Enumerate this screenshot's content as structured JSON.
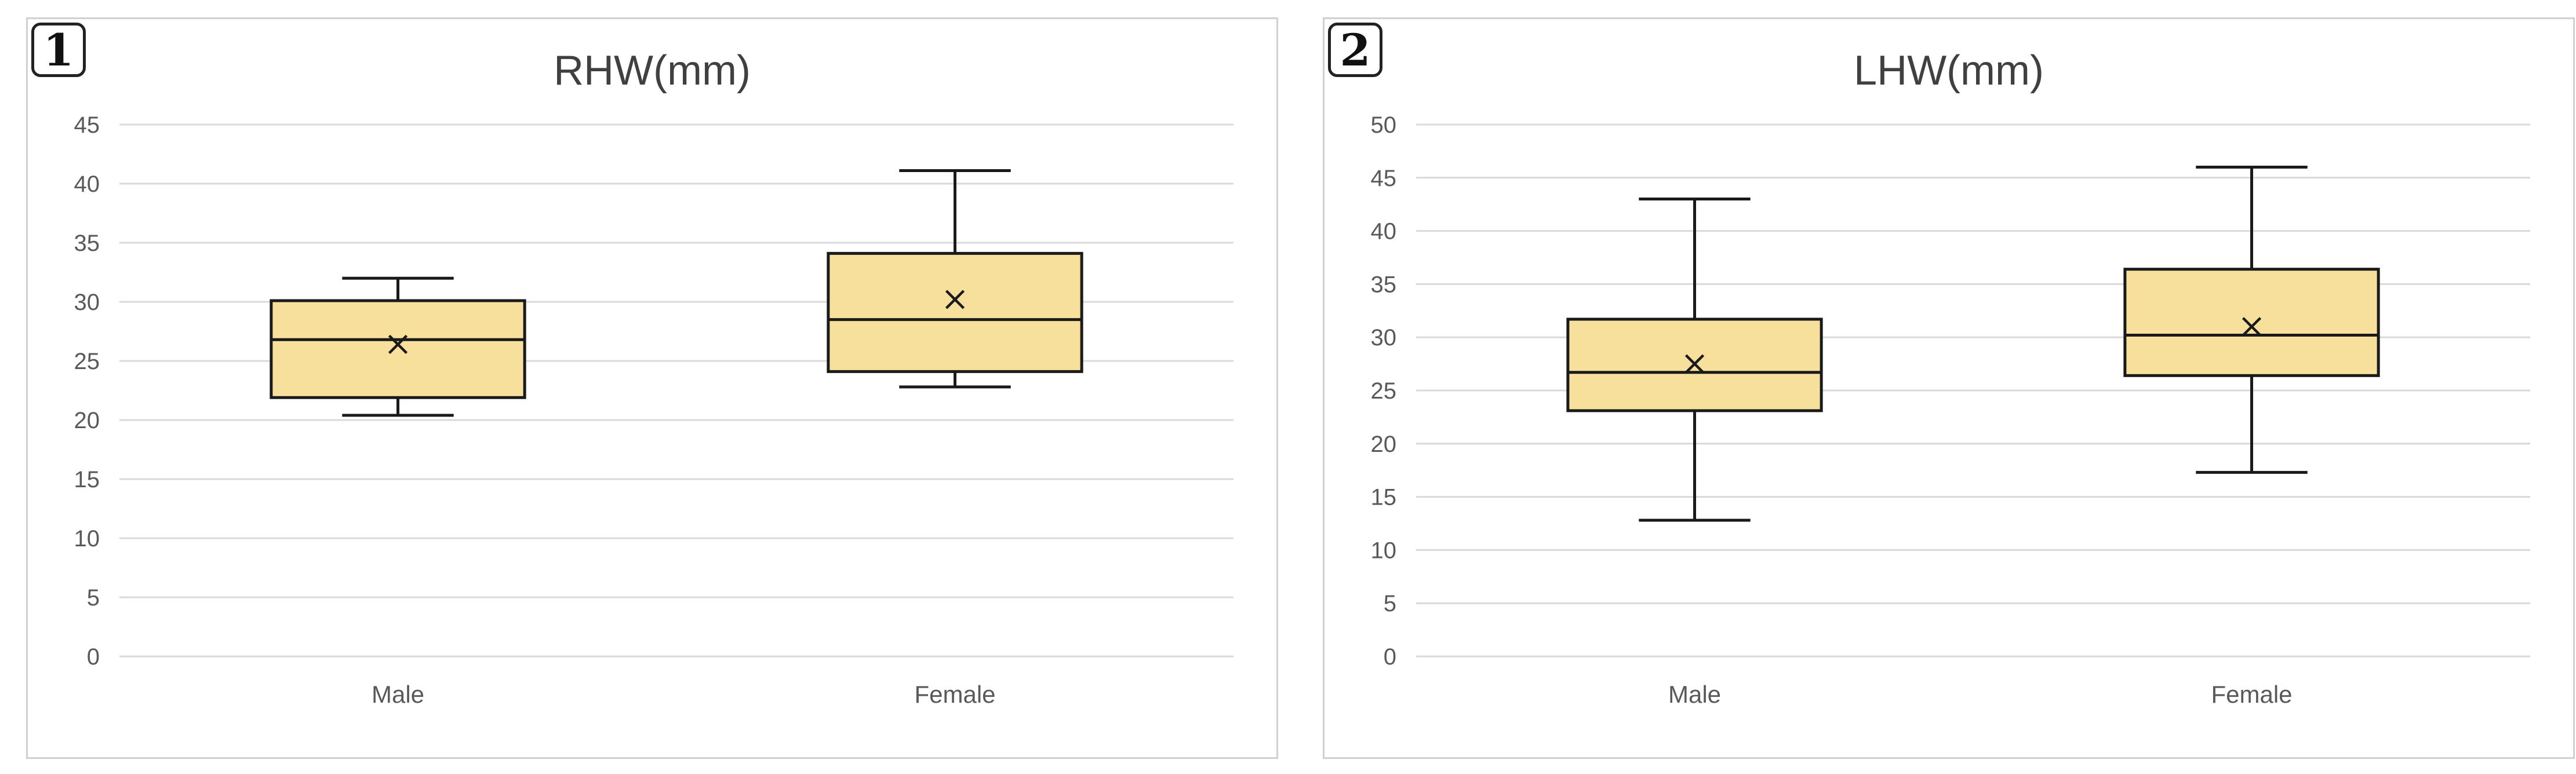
{
  "chart_data": [
    {
      "type": "box",
      "panel_label": "1",
      "title": "RHW(mm)",
      "categories": [
        "Male",
        "Female"
      ],
      "yticks": [
        "0",
        "5",
        "10",
        "15",
        "20",
        "25",
        "30",
        "35",
        "40",
        "45"
      ],
      "ylim": [
        0,
        45
      ],
      "grid": true,
      "boxes": [
        {
          "category": "Male",
          "min": 20.4,
          "q1": 21.9,
          "median": 26.8,
          "q3": 30.1,
          "max": 32.0,
          "mean": 26.4
        },
        {
          "category": "Female",
          "min": 22.8,
          "q1": 24.1,
          "median": 28.5,
          "q3": 34.1,
          "max": 41.1,
          "mean": 30.2
        }
      ],
      "box_fill": "#f7e09c",
      "box_stroke": "#1a1a1a"
    },
    {
      "type": "box",
      "panel_label": "2",
      "title": "LHW(mm)",
      "categories": [
        "Male",
        "Female"
      ],
      "yticks": [
        "0",
        "5",
        "10",
        "15",
        "20",
        "25",
        "30",
        "35",
        "40",
        "45",
        "50"
      ],
      "ylim": [
        0,
        50
      ],
      "grid": true,
      "boxes": [
        {
          "category": "Male",
          "min": 12.8,
          "q1": 23.1,
          "median": 26.7,
          "q3": 31.7,
          "max": 43.0,
          "mean": 27.5
        },
        {
          "category": "Female",
          "min": 17.3,
          "q1": 26.4,
          "median": 30.2,
          "q3": 36.4,
          "max": 46.0,
          "mean": 31.0
        }
      ],
      "box_fill": "#f7e09c",
      "box_stroke": "#1a1a1a"
    }
  ]
}
